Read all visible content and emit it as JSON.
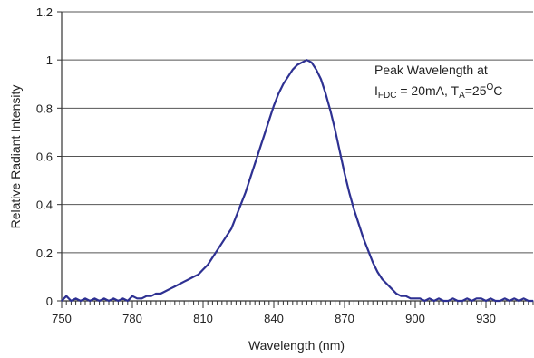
{
  "chart_data": {
    "type": "line",
    "title": "",
    "xlabel": "Wavelength (nm)",
    "ylabel": "Relative Radiant Intensity",
    "xlim": [
      750,
      950
    ],
    "ylim": [
      0,
      1.2
    ],
    "x_ticks": [
      750,
      780,
      810,
      840,
      870,
      900,
      930
    ],
    "x_tick_labels": [
      "750",
      "780",
      "810",
      "840",
      "870",
      "900",
      "930"
    ],
    "y_ticks": [
      0,
      0.2,
      0.4,
      0.6,
      0.8,
      1,
      1.2
    ],
    "y_tick_labels": [
      "0",
      "0.2",
      "0.4",
      "0.6",
      "0.8",
      "1",
      "1.2"
    ],
    "grid": "horizontal",
    "line_color": "#2e3192",
    "annotation": {
      "line1": "Peak Wavelength at",
      "line2_parts": [
        {
          "text": "I",
          "style": "normal"
        },
        {
          "text": "FDC",
          "style": "sub"
        },
        {
          "text": " = 20mA, T",
          "style": "normal"
        },
        {
          "text": "A",
          "style": "sub"
        },
        {
          "text": "=25",
          "style": "normal"
        },
        {
          "text": "O",
          "style": "sup"
        },
        {
          "text": "C",
          "style": "normal"
        }
      ]
    },
    "series": [
      {
        "x": [
          750,
          752,
          754,
          756,
          758,
          760,
          762,
          764,
          766,
          768,
          770,
          772,
          774,
          776,
          778,
          780,
          782,
          784,
          786,
          788,
          790,
          792,
          794,
          796,
          798,
          800,
          802,
          804,
          806,
          808,
          810,
          812,
          814,
          816,
          818,
          820,
          822,
          824,
          826,
          828,
          830,
          832,
          834,
          836,
          838,
          840,
          842,
          844,
          846,
          848,
          850,
          852,
          854,
          856,
          858,
          860,
          862,
          864,
          866,
          868,
          870,
          872,
          874,
          876,
          878,
          880,
          882,
          884,
          886,
          888,
          890,
          892,
          894,
          896,
          898,
          900,
          902,
          904,
          906,
          908,
          910,
          912,
          914,
          916,
          918,
          920,
          922,
          924,
          926,
          928,
          930,
          932,
          934,
          936,
          938,
          940,
          942,
          944,
          946,
          948,
          950
        ],
        "values": [
          0,
          0.02,
          0,
          0.01,
          0,
          0.01,
          0,
          0.01,
          0,
          0.01,
          0,
          0.01,
          0,
          0.01,
          0,
          0.02,
          0.01,
          0.01,
          0.02,
          0.02,
          0.03,
          0.03,
          0.04,
          0.05,
          0.06,
          0.07,
          0.08,
          0.09,
          0.1,
          0.11,
          0.13,
          0.15,
          0.18,
          0.21,
          0.24,
          0.27,
          0.3,
          0.35,
          0.4,
          0.45,
          0.51,
          0.57,
          0.63,
          0.69,
          0.75,
          0.81,
          0.86,
          0.9,
          0.93,
          0.96,
          0.98,
          0.99,
          1.0,
          0.99,
          0.96,
          0.92,
          0.86,
          0.79,
          0.71,
          0.62,
          0.53,
          0.45,
          0.38,
          0.32,
          0.26,
          0.21,
          0.16,
          0.12,
          0.09,
          0.07,
          0.05,
          0.03,
          0.02,
          0.02,
          0.01,
          0.01,
          0.01,
          0,
          0.01,
          0,
          0.01,
          0,
          0,
          0.01,
          0,
          0,
          0.01,
          0,
          0.01,
          0.01,
          0,
          0.01,
          0,
          0,
          0.01,
          0,
          0.01,
          0,
          0.01,
          0,
          0
        ]
      }
    ]
  }
}
